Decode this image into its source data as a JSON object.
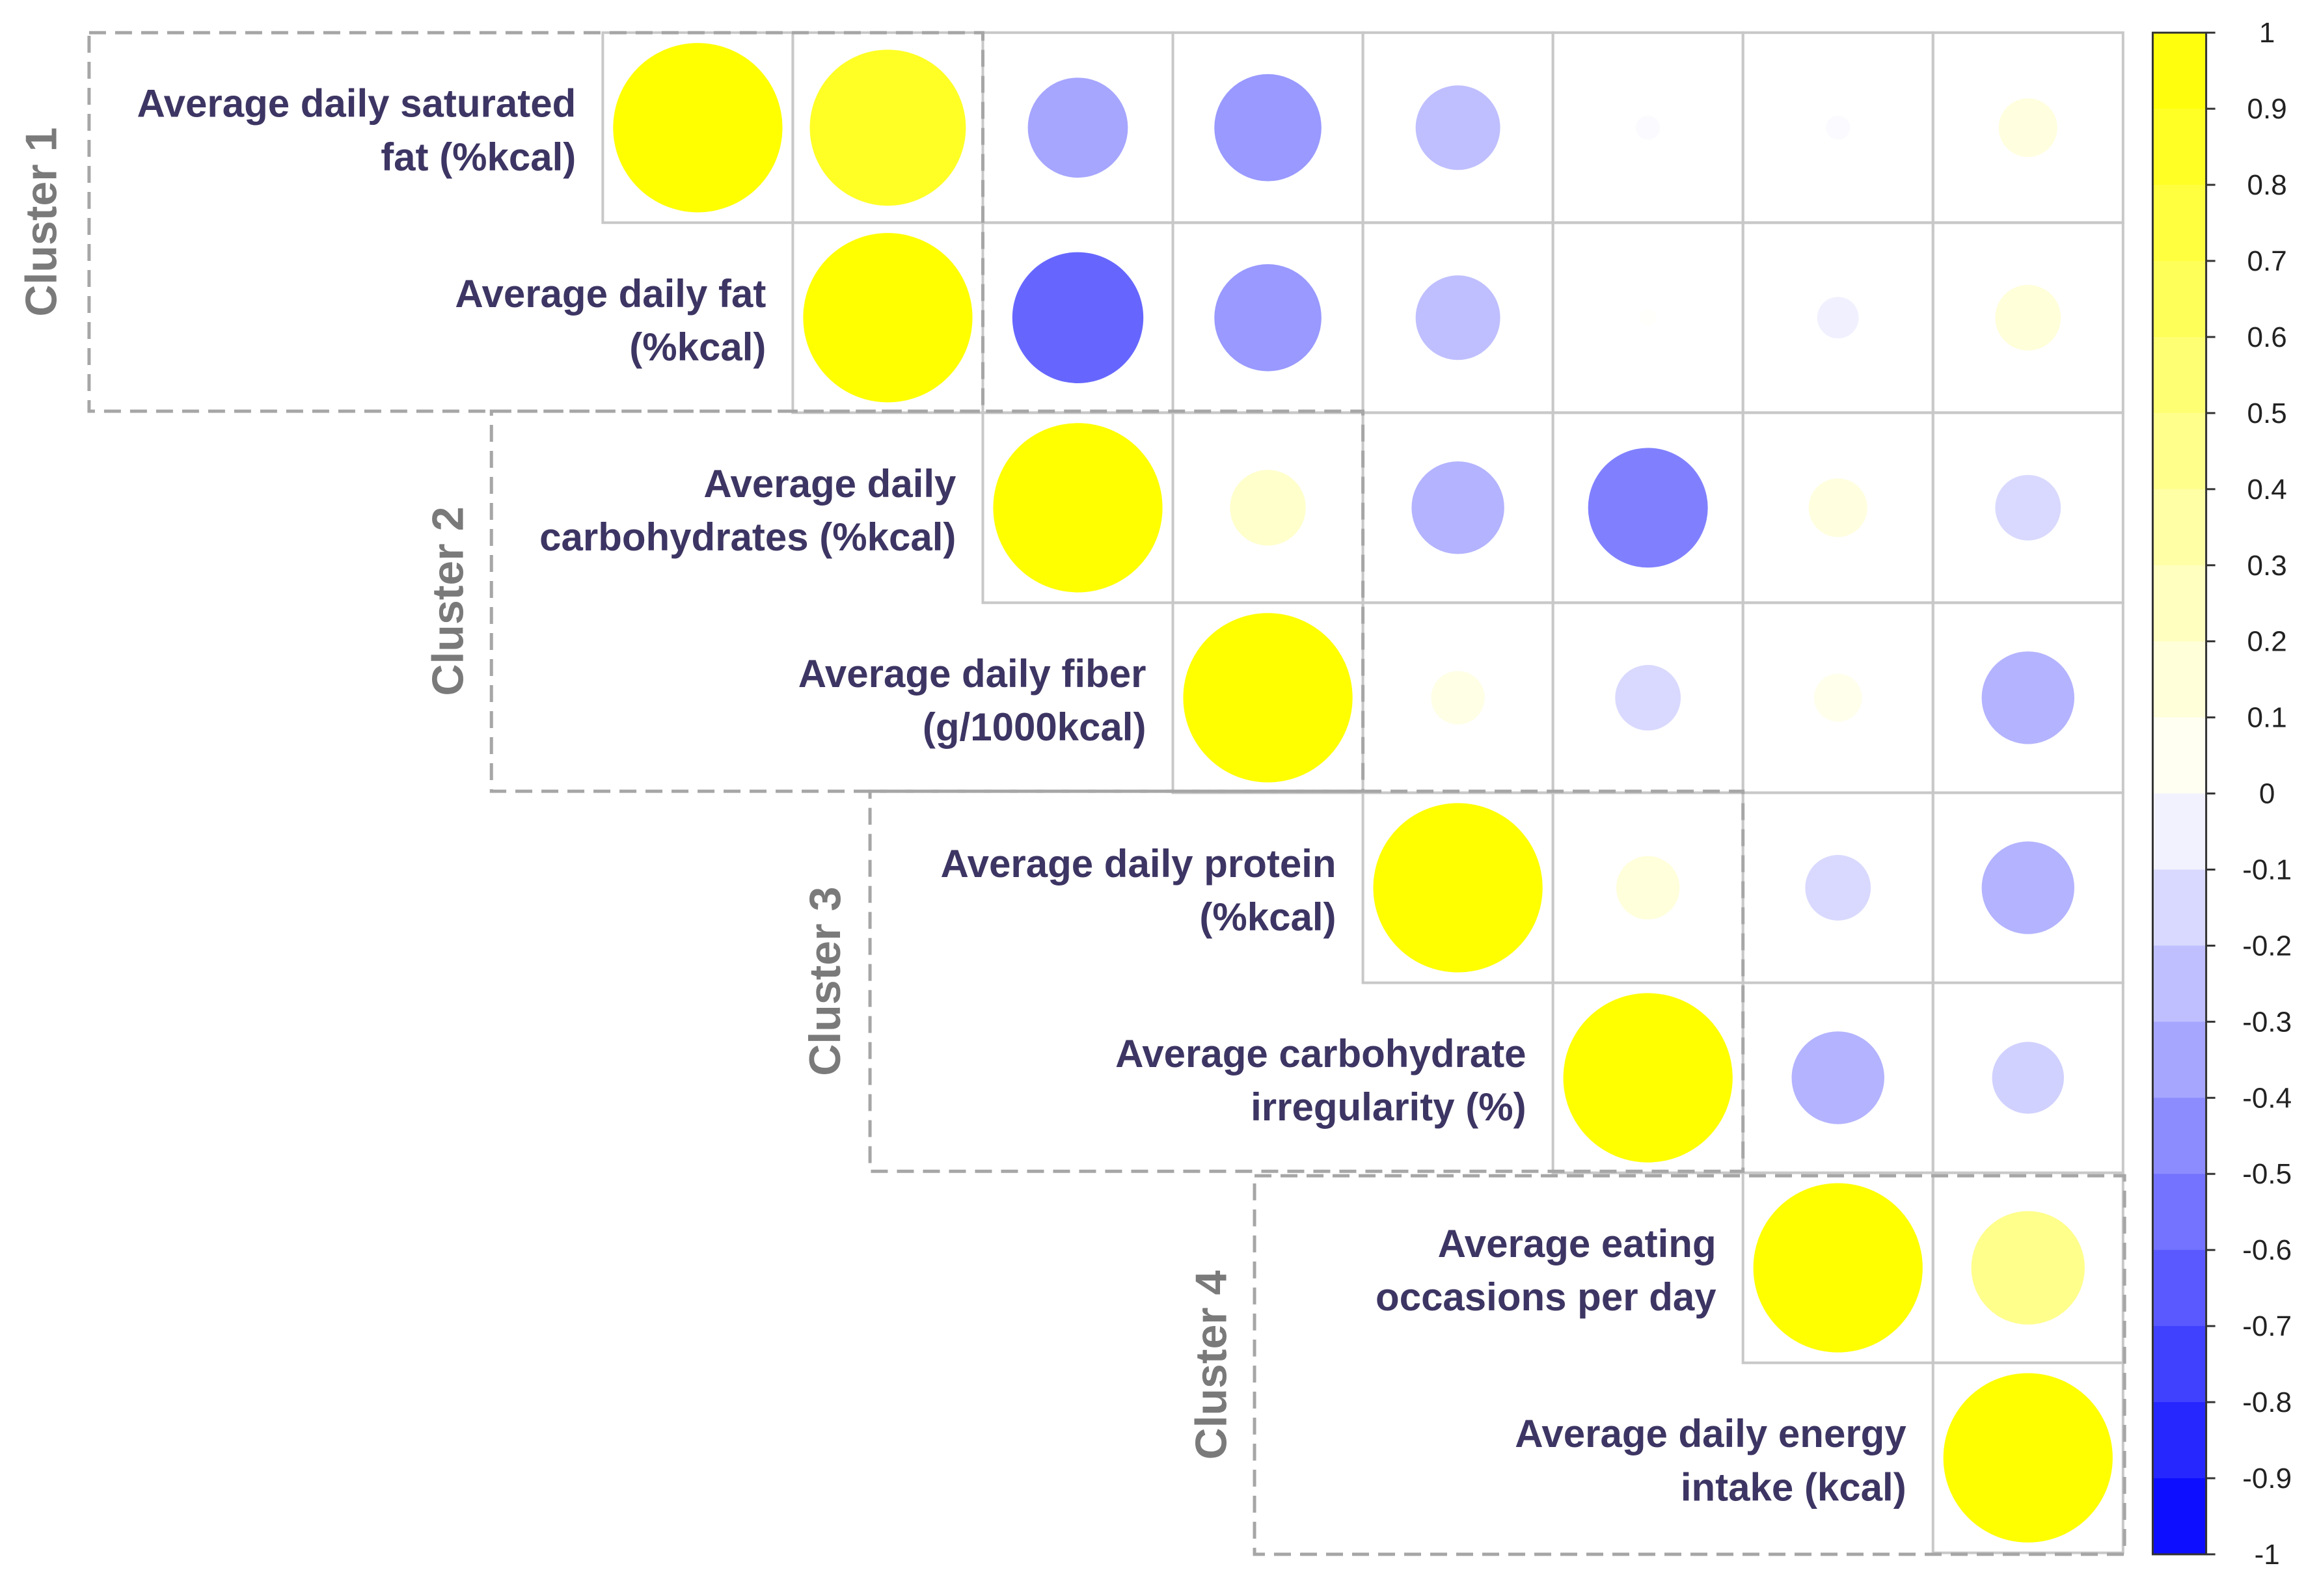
{
  "chart_data": {
    "type": "correlation-matrix",
    "title": "",
    "variables": [
      "Average daily saturated fat (%kcal)",
      "Average daily fat (%kcal)",
      "Average daily carbohydrates (%kcal)",
      "Average daily fiber (g/1000kcal)",
      "Average daily protein (%kcal)",
      "Average carbohydrate irregularity (%)",
      "Average eating occasions per day",
      "Average daily energy intake (kcal)"
    ],
    "labels": [
      {
        "variable": "Average daily saturated fat (%kcal)",
        "lines": [
          "Average daily saturated",
          "fat (%kcal)"
        ]
      },
      {
        "variable": "Average daily fat (%kcal)",
        "lines": [
          "Average daily fat",
          "(%kcal)"
        ]
      },
      {
        "variable": "Average daily carbohydrates (%kcal)",
        "lines": [
          "Average daily",
          "carbohydrates (%kcal)"
        ]
      },
      {
        "variable": "Average daily fiber (g/1000kcal)",
        "lines": [
          "Average daily fiber",
          "(g/1000kcal)"
        ]
      },
      {
        "variable": "Average daily protein (%kcal)",
        "lines": [
          "Average daily protein",
          "(%kcal)"
        ]
      },
      {
        "variable": "Average carbohydrate irregularity (%)",
        "lines": [
          "Average carbohydrate",
          "irregularity (%)"
        ]
      },
      {
        "variable": "Average eating occasions per day",
        "lines": [
          "Average eating",
          "occasions per day"
        ]
      },
      {
        "variable": "Average daily energy intake (kcal)",
        "lines": [
          "Average daily energy",
          "intake (kcal)"
        ]
      }
    ],
    "matrix_upper": [
      [
        1.0,
        0.85,
        -0.35,
        -0.4,
        -0.25,
        -0.02,
        -0.02,
        0.12
      ],
      [
        null,
        1.0,
        -0.6,
        -0.4,
        -0.25,
        0.01,
        -0.06,
        0.15
      ],
      [
        null,
        null,
        1.0,
        0.2,
        -0.3,
        -0.5,
        0.12,
        -0.15
      ],
      [
        null,
        null,
        null,
        1.0,
        0.1,
        -0.15,
        0.08,
        -0.3
      ],
      [
        null,
        null,
        null,
        null,
        1.0,
        0.14,
        -0.15,
        -0.3
      ],
      [
        null,
        null,
        null,
        null,
        null,
        1.0,
        -0.3,
        -0.18
      ],
      [
        null,
        null,
        null,
        null,
        null,
        null,
        1.0,
        0.45
      ],
      [
        null,
        null,
        null,
        null,
        null,
        null,
        null,
        1.0
      ]
    ],
    "clusters": [
      {
        "name": "Cluster 1",
        "members": [
          0,
          1
        ]
      },
      {
        "name": "Cluster 2",
        "members": [
          2,
          3
        ]
      },
      {
        "name": "Cluster 3",
        "members": [
          4,
          5
        ]
      },
      {
        "name": "Cluster 4",
        "members": [
          6,
          7
        ]
      }
    ],
    "colorbar": {
      "range": [
        -1,
        1
      ],
      "ticks": [
        "1",
        "0.9",
        "0.8",
        "0.7",
        "0.6",
        "0.5",
        "0.4",
        "0.3",
        "0.2",
        "0.1",
        "0",
        "-0.1",
        "-0.2",
        "-0.3",
        "-0.4",
        "-0.5",
        "-0.6",
        "-0.7",
        "-0.8",
        "-0.9",
        "-1"
      ],
      "positive_color": "#ffff00",
      "negative_color": "#0000ff",
      "neutral_color": "#ffffff"
    },
    "grid_color": "#c8c8c8",
    "dash_color": "#a6a6a6"
  }
}
